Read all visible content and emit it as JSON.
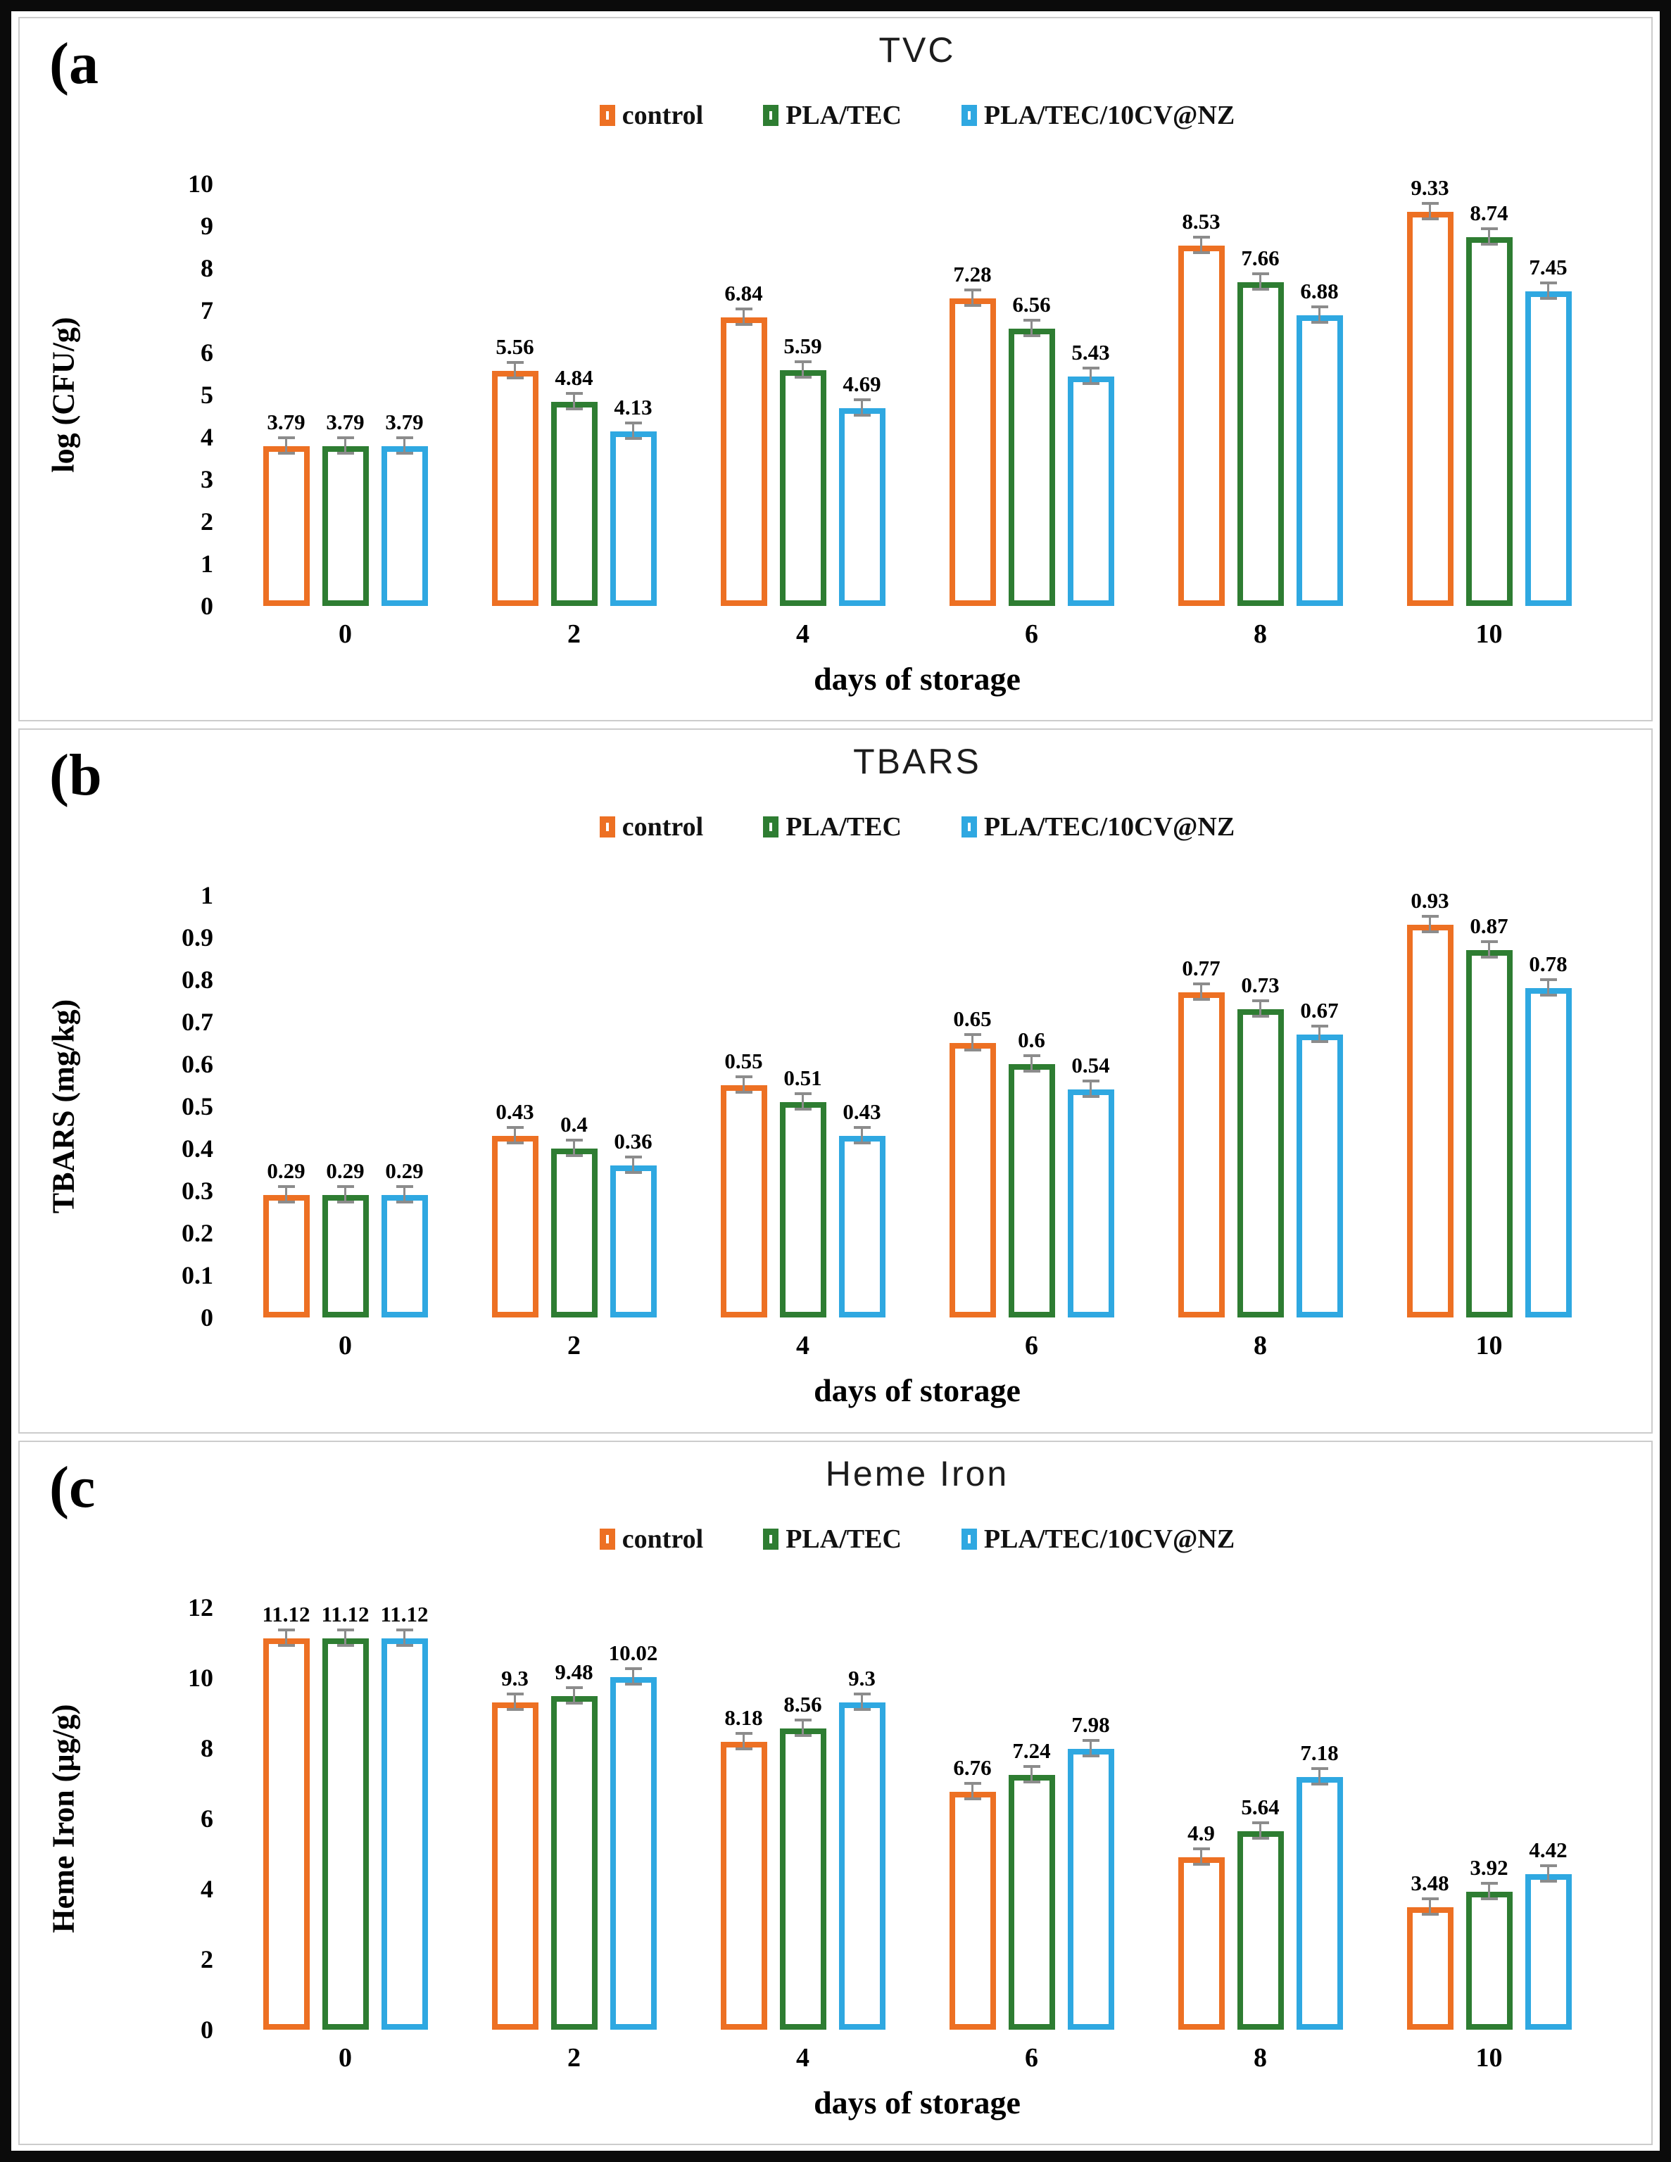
{
  "figure": {
    "xlabel": "days of storage",
    "categories": [
      "0",
      "2",
      "4",
      "6",
      "8",
      "10"
    ],
    "legend": [
      "control",
      "PLA/TEC",
      "PLA/TEC/10CV@NZ"
    ],
    "colors": {
      "series": [
        "#ED7023",
        "#2E7D32",
        "#2FA8E1"
      ],
      "error_bar": "#8C8C8C",
      "panel_border": "#CCCCCC",
      "frame": "#0B0B0B"
    }
  },
  "chart_data": [
    {
      "type": "bar",
      "panel_id": "a",
      "panel_label": "(a",
      "title": "TVC",
      "ylabel": "log (CFU/g)",
      "xlabel": "days of storage",
      "ylim": [
        0,
        10
      ],
      "ymax": 10,
      "yticks": [
        "0",
        "1",
        "2",
        "3",
        "4",
        "5",
        "6",
        "7",
        "8",
        "9",
        "10"
      ],
      "categories": [
        "0",
        "2",
        "4",
        "6",
        "8",
        "10"
      ],
      "legend_position": "top",
      "grid": false,
      "series": [
        {
          "name": "control",
          "values": [
            3.79,
            5.56,
            6.84,
            7.28,
            8.53,
            9.33
          ],
          "labels": [
            "3.79",
            "5.56",
            "6.84",
            "7.28",
            "8.53",
            "9.33"
          ]
        },
        {
          "name": "PLA/TEC",
          "values": [
            3.79,
            4.84,
            5.59,
            6.56,
            7.66,
            8.74
          ],
          "labels": [
            "3.79",
            "4.84",
            "5.59",
            "6.56",
            "7.66",
            "8.74"
          ]
        },
        {
          "name": "PLA/TEC/10CV@NZ",
          "values": [
            3.79,
            4.13,
            4.69,
            5.43,
            6.88,
            7.45
          ],
          "labels": [
            "3.79",
            "4.13",
            "4.69",
            "5.43",
            "6.88",
            "7.45"
          ]
        }
      ]
    },
    {
      "type": "bar",
      "panel_id": "b",
      "panel_label": "(b",
      "title": "TBARS",
      "ylabel": "TBARS (mg/kg)",
      "xlabel": "days of storage",
      "ylim": [
        0,
        1
      ],
      "ymax": 1,
      "yticks": [
        "0",
        "0.1",
        "0.2",
        "0.3",
        "0.4",
        "0.5",
        "0.6",
        "0.7",
        "0.8",
        "0.9",
        "1"
      ],
      "categories": [
        "0",
        "2",
        "4",
        "6",
        "8",
        "10"
      ],
      "legend_position": "top",
      "grid": false,
      "series": [
        {
          "name": "control",
          "values": [
            0.29,
            0.43,
            0.55,
            0.65,
            0.77,
            0.93
          ],
          "labels": [
            "0.29",
            "0.43",
            "0.55",
            "0.65",
            "0.77",
            "0.93"
          ]
        },
        {
          "name": "PLA/TEC",
          "values": [
            0.29,
            0.4,
            0.51,
            0.6,
            0.73,
            0.87
          ],
          "labels": [
            "0.29",
            "0.4",
            "0.51",
            "0.6",
            "0.73",
            "0.87"
          ]
        },
        {
          "name": "PLA/TEC/10CV@NZ",
          "values": [
            0.29,
            0.36,
            0.43,
            0.54,
            0.67,
            0.78
          ],
          "labels": [
            "0.29",
            "0.36",
            "0.43",
            "0.54",
            "0.67",
            "0.78"
          ]
        }
      ]
    },
    {
      "type": "bar",
      "panel_id": "c",
      "panel_label": "(c",
      "title": "Heme Iron",
      "ylabel": "Heme Iron  (µg/g)",
      "xlabel": "days of storage",
      "ylim": [
        0,
        12
      ],
      "ymax": 12,
      "yticks": [
        "0",
        "2",
        "4",
        "6",
        "8",
        "10",
        "12"
      ],
      "categories": [
        "0",
        "2",
        "4",
        "6",
        "8",
        "10"
      ],
      "legend_position": "top",
      "grid": false,
      "series": [
        {
          "name": "control",
          "values": [
            11.12,
            9.3,
            8.18,
            6.76,
            4.9,
            3.48
          ],
          "labels": [
            "11.12",
            "9.3",
            "8.18",
            "6.76",
            "4.9",
            "3.48"
          ]
        },
        {
          "name": "PLA/TEC",
          "values": [
            11.12,
            9.48,
            8.56,
            7.24,
            5.64,
            3.92
          ],
          "labels": [
            "11.12",
            "9.48",
            "8.56",
            "7.24",
            "5.64",
            "3.92"
          ]
        },
        {
          "name": "PLA/TEC/10CV@NZ",
          "values": [
            11.12,
            10.02,
            9.3,
            7.98,
            7.18,
            4.42
          ],
          "labels": [
            "11.12",
            "10.02",
            "9.3",
            "7.98",
            "7.18",
            "4.42"
          ]
        }
      ]
    }
  ]
}
